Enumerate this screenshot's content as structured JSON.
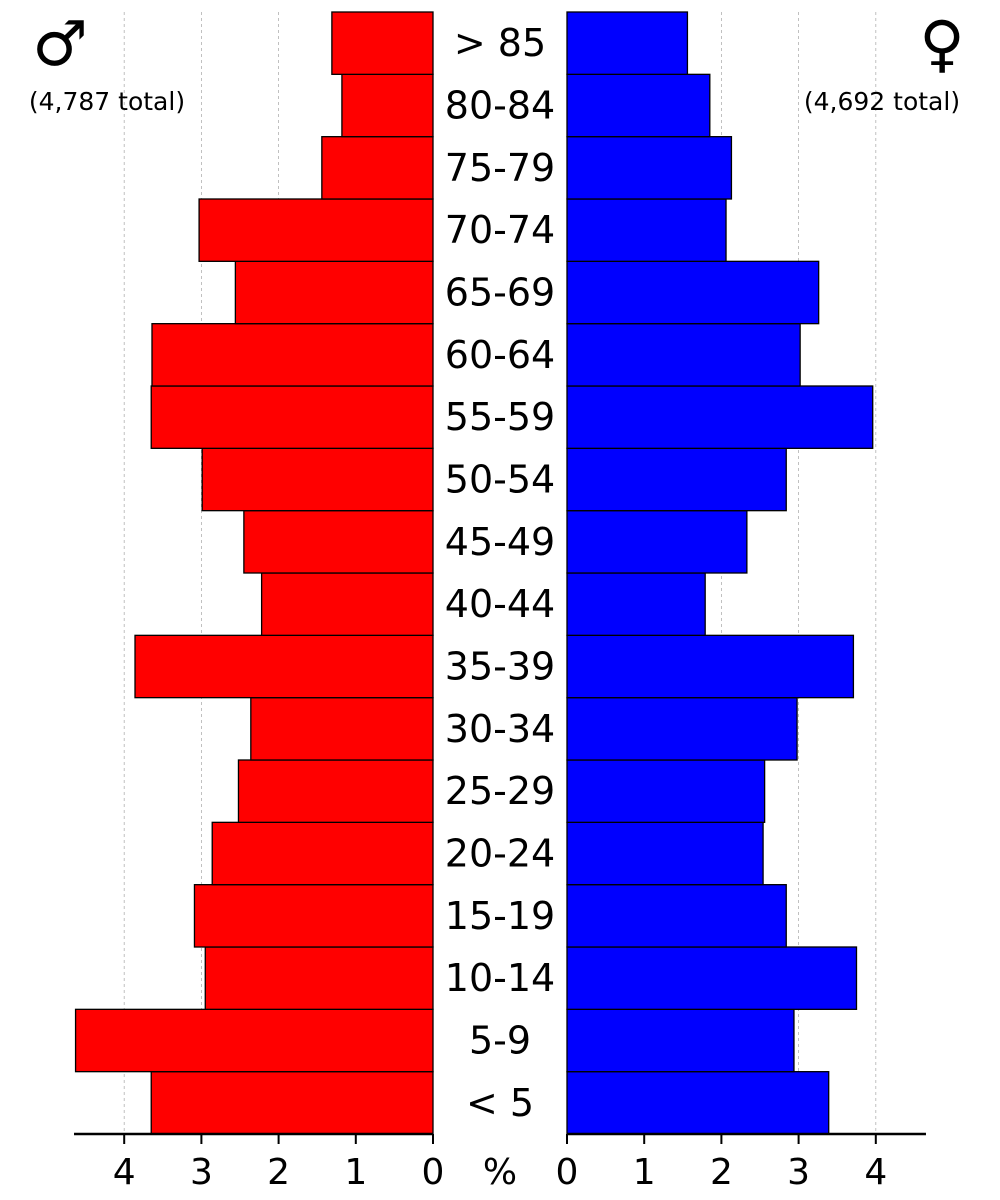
{
  "chart_data": {
    "type": "bar",
    "subtype": "population-pyramid",
    "categories": [
      "< 5",
      "5-9",
      "10-14",
      "15-19",
      "20-24",
      "25-29",
      "30-34",
      "35-39",
      "40-44",
      "45-49",
      "50-54",
      "55-59",
      "60-64",
      "65-69",
      "70-74",
      "75-79",
      "80-84",
      "> 85"
    ],
    "series": [
      {
        "side": "left",
        "symbol": "♂",
        "total_label": "(4,787 total)",
        "color": "#ff0000",
        "values": [
          3.65,
          4.63,
          2.95,
          3.09,
          2.86,
          2.52,
          2.36,
          3.86,
          2.22,
          2.45,
          2.99,
          3.65,
          3.64,
          2.56,
          3.03,
          1.44,
          1.18,
          1.31
        ]
      },
      {
        "side": "right",
        "symbol": "♀",
        "total_label": "(4,692 total)",
        "color": "#0000ff",
        "values": [
          3.39,
          2.94,
          3.75,
          2.84,
          2.54,
          2.56,
          2.98,
          3.71,
          1.79,
          2.33,
          2.84,
          3.96,
          3.02,
          3.26,
          2.06,
          2.13,
          1.85,
          1.56
        ]
      }
    ],
    "unit_label": "%",
    "xticks": [
      0,
      1,
      2,
      3,
      4
    ],
    "xlim": [
      0,
      4.65
    ],
    "grid": true
  }
}
